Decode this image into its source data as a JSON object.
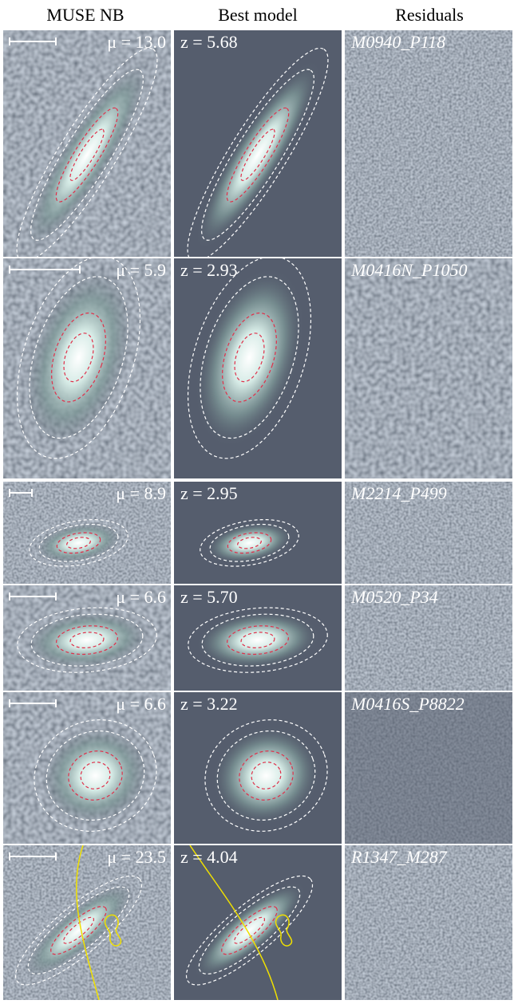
{
  "headers": [
    "MUSE NB",
    "Best model",
    "Residuals"
  ],
  "rows": [
    {
      "mu": "μ = 13.0",
      "z": "z = 5.68",
      "id": "M0940_P118"
    },
    {
      "mu": "μ = 5.9",
      "z": "z = 2.93",
      "id": "M0416N_P1050"
    },
    {
      "mu": "μ = 8.9",
      "z": "z = 2.95",
      "id": "M2214_P499"
    },
    {
      "mu": "μ = 6.6",
      "z": "z = 5.70",
      "id": "M0520_P34"
    },
    {
      "mu": "μ = 6.6",
      "z": "z = 3.22",
      "id": "M0416S_P8822"
    },
    {
      "mu": "μ = 23.5",
      "z": "z = 4.04",
      "id": "R1347_M287"
    }
  ]
}
